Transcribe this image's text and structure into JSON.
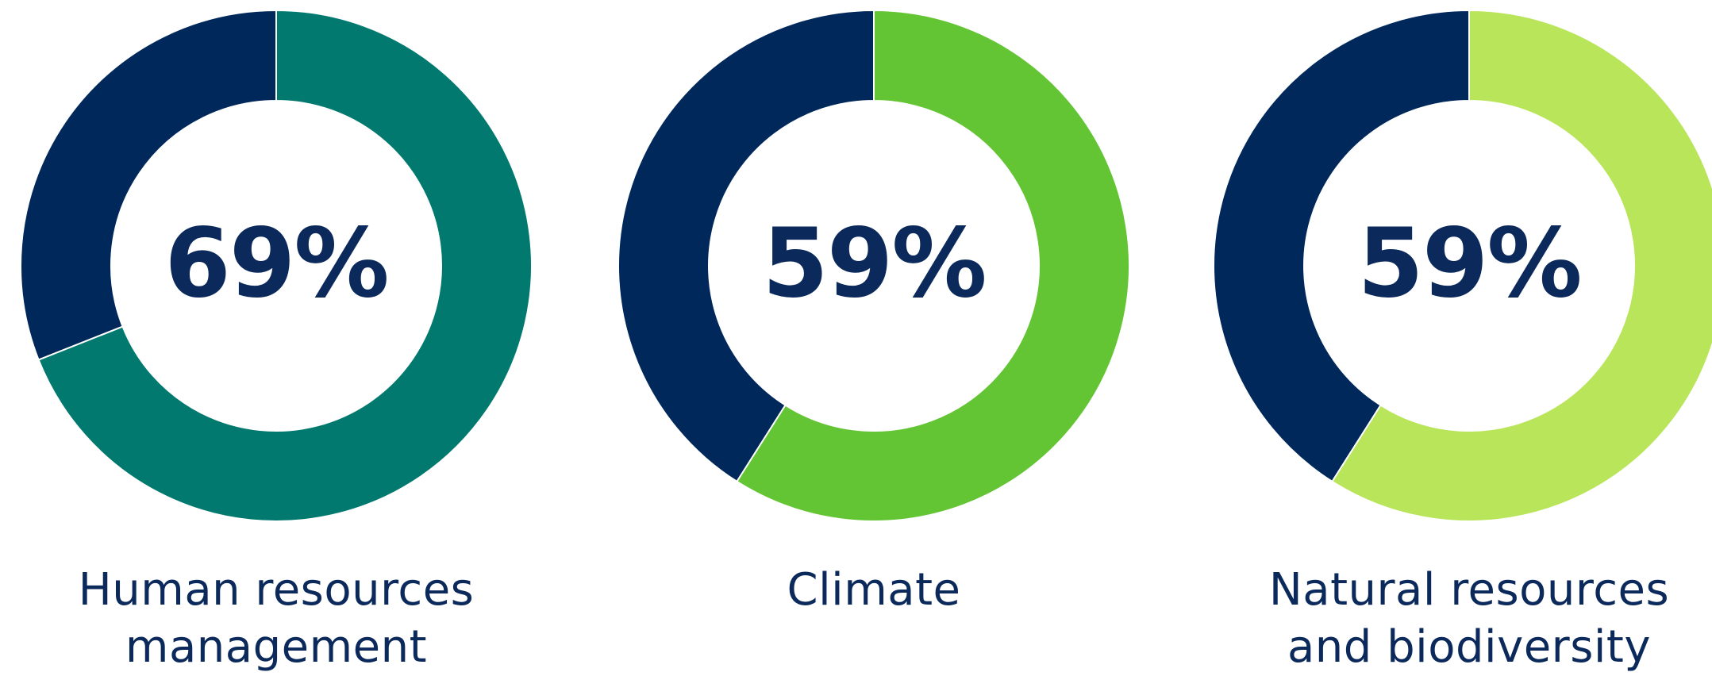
{
  "colors": {
    "remainder": "#00285b",
    "text": "#0b2a5b",
    "divider": "#ffffff"
  },
  "chart_data": [
    {
      "type": "pie",
      "variant": "donut",
      "value_label": "69%",
      "label": "Human resources management",
      "slices": [
        {
          "value": 69,
          "color": "#01796f"
        },
        {
          "value": 31,
          "color": "#00285b"
        }
      ]
    },
    {
      "type": "pie",
      "variant": "donut",
      "value_label": "59%",
      "label": "Climate",
      "slices": [
        {
          "value": 59,
          "color": "#63c533"
        },
        {
          "value": 41,
          "color": "#00285b"
        }
      ]
    },
    {
      "type": "pie",
      "variant": "donut",
      "value_label": "59%",
      "label": "Natural resources and biodiversity",
      "slices": [
        {
          "value": 59,
          "color": "#b9e55a"
        },
        {
          "value": 41,
          "color": "#00285b"
        }
      ]
    }
  ]
}
